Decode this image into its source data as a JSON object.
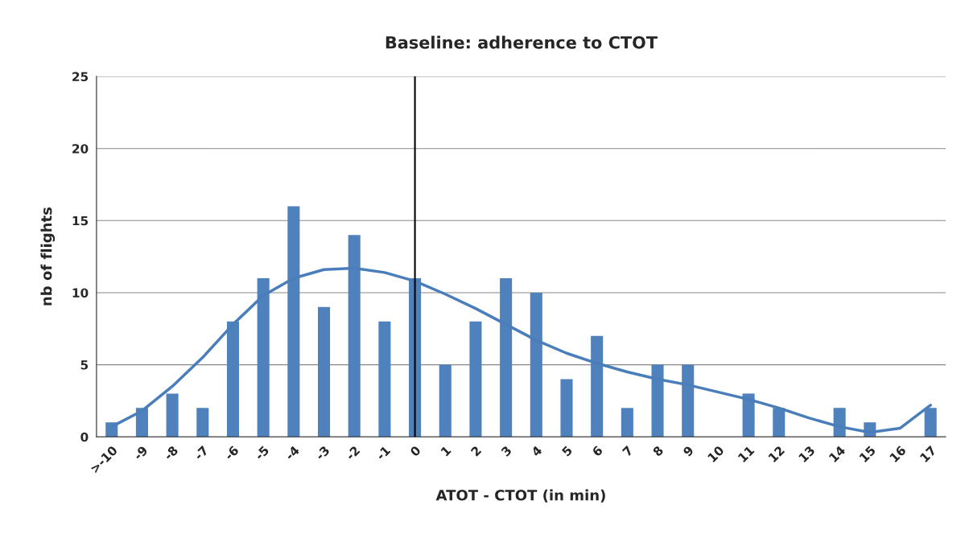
{
  "chart_data": {
    "type": "bar",
    "title": "Baseline: adherence to CTOT",
    "xlabel": "ATOT - CTOT (in min)",
    "ylabel": "nb of flights",
    "categories": [
      ">-10",
      "-9",
      "-8",
      "-7",
      "-6",
      "-5",
      "-4",
      "-3",
      "-2",
      "-1",
      "0",
      "1",
      "2",
      "3",
      "4",
      "5",
      "6",
      "7",
      "8",
      "9",
      "10",
      "11",
      "12",
      "13",
      "14",
      "15",
      "16",
      "17"
    ],
    "series": [
      {
        "color": "#4f81bd",
        "values": [
          1,
          2,
          3,
          2,
          8,
          11,
          16,
          9,
          14,
          8,
          11,
          5,
          8,
          11,
          10,
          4,
          7,
          2,
          5,
          5,
          null,
          3,
          2,
          null,
          2,
          1,
          null,
          2
        ]
      },
      {
        "type": "line",
        "color": "#4a7ebb",
        "values": [
          0.7,
          1.8,
          3.5,
          5.5,
          7.8,
          9.8,
          11.0,
          11.6,
          11.7,
          11.4,
          10.8,
          9.9,
          8.9,
          7.8,
          6.7,
          5.8,
          5.1,
          4.5,
          4.0,
          3.6,
          3.1,
          2.6,
          2.0,
          1.3,
          0.7,
          0.3,
          0.6,
          2.2
        ]
      }
    ],
    "ylim": [
      0,
      25
    ],
    "yticks": [
      0,
      5,
      10,
      15,
      20,
      25
    ],
    "grid": "y",
    "legend": false,
    "ref_lines": [
      {
        "axis": "x",
        "value": "0",
        "color": "#000000"
      }
    ]
  }
}
